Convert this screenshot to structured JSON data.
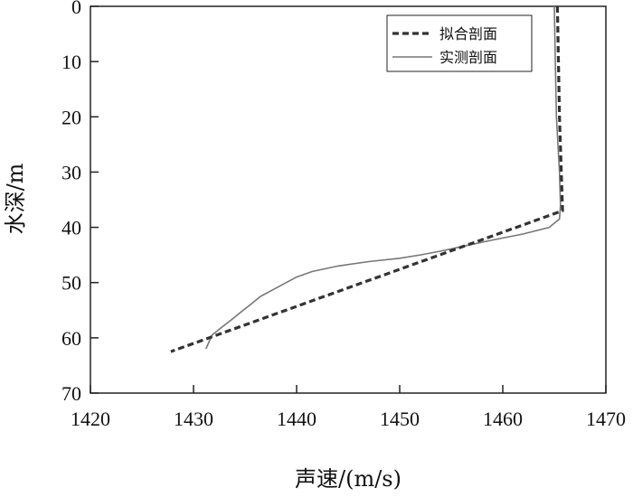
{
  "chart_data": {
    "type": "line",
    "xlabel": "声速/(m/s)",
    "ylabel": "水深/m",
    "xlim": [
      1420,
      1470
    ],
    "ylim": [
      0,
      70
    ],
    "y_inverted": true,
    "x_ticks": [
      1420,
      1430,
      1440,
      1450,
      1460,
      1470
    ],
    "y_ticks": [
      0,
      10,
      20,
      30,
      40,
      50,
      60,
      70
    ],
    "grid": false,
    "legend_position": "top-right",
    "series": [
      {
        "name": "拟合剖面",
        "style": "dashed",
        "color": "#333333",
        "x": [
          1465.3,
          1465.5,
          1465.8,
          1427.8
        ],
        "y": [
          0,
          20,
          37,
          62.5
        ]
      },
      {
        "name": "实测剖面",
        "style": "solid",
        "color": "#777777",
        "x": [
          1465.0,
          1465.1,
          1465.2,
          1465.5,
          1465.6,
          1465.5,
          1464.5,
          1462.0,
          1459.0,
          1456.5,
          1454.0,
          1452.0,
          1450.0,
          1447.0,
          1444.0,
          1441.5,
          1440.0,
          1439.0,
          1438.0,
          1436.5,
          1435.5,
          1434.5,
          1433.5,
          1432.8,
          1431.8,
          1431.2
        ],
        "y": [
          0,
          10,
          20,
          30,
          36,
          38.5,
          40,
          41.2,
          42.3,
          43.3,
          44.3,
          45.0,
          45.6,
          46.2,
          47.0,
          48.0,
          49.0,
          50.0,
          51.0,
          52.5,
          54.0,
          55.5,
          57.0,
          58.0,
          59.5,
          62.0
        ]
      }
    ]
  }
}
